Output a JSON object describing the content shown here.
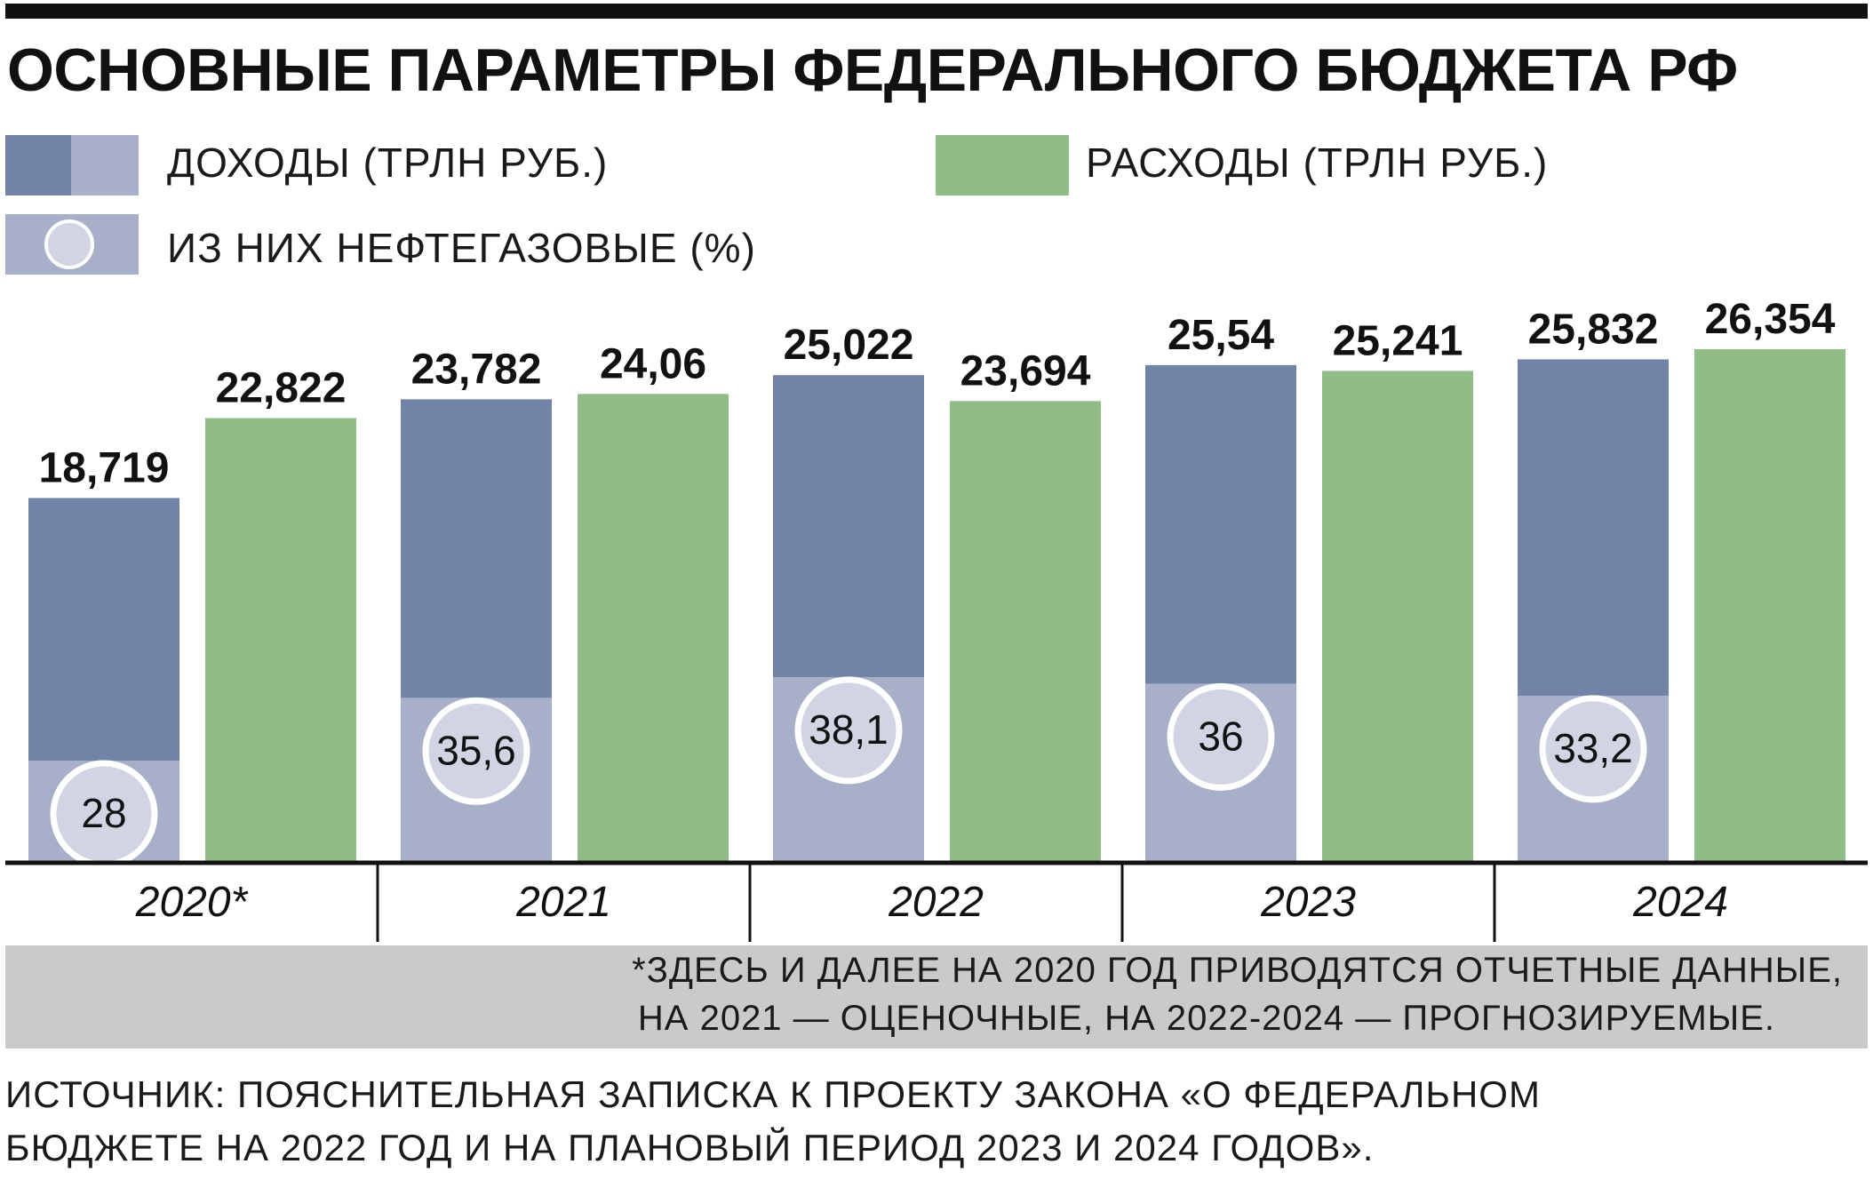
{
  "title": "ОСНОВНЫЕ ПАРАМЕТРЫ ФЕДЕРАЛЬНОГО БЮДЖЕТА РФ",
  "legend": {
    "revenue": "ДОХОДЫ (ТРЛН РУБ.)",
    "expenses": "РАСХОДЫ (ТРЛН РУБ.)",
    "oil_gas": "ИЗ НИХ НЕФТЕГАЗОВЫЕ (%)"
  },
  "colors": {
    "revenue": "#7283a8",
    "revenue_oil_gas": "#a8b0c9",
    "expenses": "#8fbc87",
    "circle_fill": "#d0d4e3",
    "axis": "#111111"
  },
  "chart_data": {
    "type": "bar",
    "categories": [
      "2020*",
      "2021",
      "2022",
      "2023",
      "2024"
    ],
    "series": [
      {
        "name": "ДОХОДЫ (ТРЛН РУБ.)",
        "values": [
          18.719,
          23.782,
          25.022,
          25.54,
          25.832
        ],
        "labels": [
          "18,719",
          "23,782",
          "25,022",
          "25,54",
          "25,832"
        ]
      },
      {
        "name": "РАСХОДЫ (ТРЛН РУБ.)",
        "values": [
          22.822,
          24.06,
          23.694,
          25.241,
          26.354
        ],
        "labels": [
          "22,822",
          "24,06",
          "23,694",
          "25,241",
          "26,354"
        ]
      },
      {
        "name": "ИЗ НИХ НЕФТЕГАЗОВЫЕ (%)",
        "values": [
          28,
          35.6,
          38.1,
          36,
          33.2
        ],
        "labels": [
          "28",
          "35,6",
          "38,1",
          "36",
          "33,2"
        ]
      }
    ],
    "ylim": [
      0,
      26.354
    ],
    "legend_position": "top",
    "grid": false
  },
  "footnote": [
    "*ЗДЕСЬ И ДАЛЕЕ НА 2020 ГОД ПРИВОДЯТСЯ ОТЧЕТНЫЕ ДАННЫЕ,",
    "НА 2021 — ОЦЕНОЧНЫЕ, НА 2022-2024 — ПРОГНОЗИРУЕМЫЕ."
  ],
  "source": [
    "ИСТОЧНИК: ПОЯСНИТЕЛЬНАЯ ЗАПИСКА К ПРОЕКТУ ЗАКОНА «О ФЕДЕРАЛЬНОМ",
    "БЮДЖЕТЕ НА 2022 ГОД И НА ПЛАНОВЫЙ ПЕРИОД 2023 И 2024 ГОДОВ»."
  ]
}
